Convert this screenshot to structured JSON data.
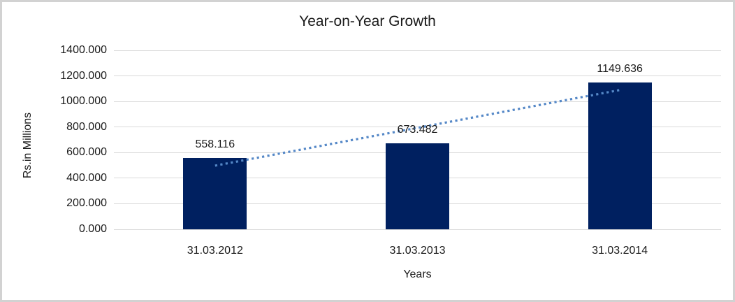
{
  "chart_data": {
    "type": "bar",
    "title": "Year-on-Year Growth",
    "xlabel": "Years",
    "ylabel": "Rs.in Millions",
    "categories": [
      "31.03.2012",
      "31.03.2013",
      "31.03.2014"
    ],
    "values": [
      558.116,
      673.482,
      1149.636
    ],
    "data_labels": [
      "558.116",
      "673.482",
      "1149.636"
    ],
    "ylim": [
      0,
      1400
    ],
    "ytick_step": 200,
    "ytick_labels": [
      "0.000",
      "200.000",
      "400.000",
      "600.000",
      "800.000",
      "1000.000",
      "1200.000",
      "1400.000"
    ],
    "grid": true,
    "legend": "none",
    "trendline": {
      "kind": "linear",
      "style": "dotted"
    },
    "colors": {
      "bar": "#002060",
      "trendline": "#5588c7",
      "gridline": "#d9d9d9",
      "text": "#1a1a1a",
      "background": "#ffffff",
      "frame_border": "#d2d2d2"
    }
  }
}
